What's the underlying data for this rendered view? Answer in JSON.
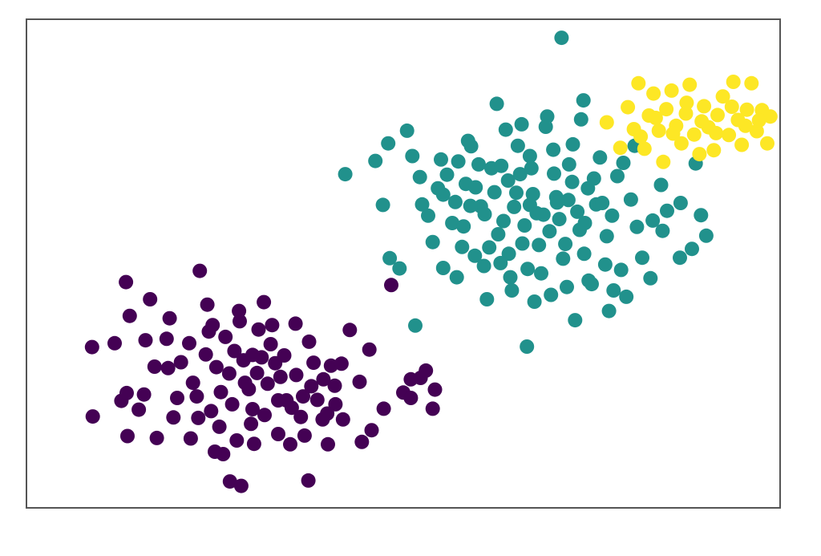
{
  "chart_data": {
    "type": "scatter",
    "title": "",
    "xlabel": "",
    "ylabel": "",
    "xlim": [
      0,
      100
    ],
    "ylim": [
      0,
      100
    ],
    "grid": false,
    "legend": "none",
    "series": [
      {
        "color": "#440154",
        "points": [
          [
            8.8,
            18.7
          ],
          [
            8.7,
            32.9
          ],
          [
            12.6,
            21.9
          ],
          [
            11.7,
            33.7
          ],
          [
            13.2,
            46.2
          ],
          [
            13.3,
            23.5
          ],
          [
            13.4,
            14.7
          ],
          [
            13.7,
            39.3
          ],
          [
            14.9,
            20.1
          ],
          [
            15.8,
            34.3
          ],
          [
            15.6,
            23.2
          ],
          [
            16.4,
            42.7
          ],
          [
            17.3,
            14.3
          ],
          [
            18.8,
            28.6
          ],
          [
            19.5,
            18.5
          ],
          [
            21.6,
            33.7
          ],
          [
            21.8,
            14.2
          ],
          [
            22.6,
            22.8
          ],
          [
            23.0,
            48.5
          ],
          [
            24.0,
            41.6
          ],
          [
            24.2,
            36.1
          ],
          [
            25.2,
            28.8
          ],
          [
            25.6,
            16.6
          ],
          [
            26.1,
            11.0
          ],
          [
            27.0,
            5.4
          ],
          [
            28.5,
            4.5
          ],
          [
            28.3,
            38.2
          ],
          [
            29.0,
            25.6
          ],
          [
            30.0,
            20.2
          ],
          [
            30.2,
            13.1
          ],
          [
            31.5,
            42.1
          ],
          [
            32.4,
            33.5
          ],
          [
            33.4,
            15.1
          ],
          [
            33.0,
            29.6
          ],
          [
            34.5,
            22.0
          ],
          [
            35.0,
            13.0
          ],
          [
            35.7,
            37.7
          ],
          [
            36.7,
            22.8
          ],
          [
            37.4,
            5.6
          ],
          [
            37.5,
            34.0
          ],
          [
            38.1,
            29.7
          ],
          [
            39.3,
            18.1
          ],
          [
            39.4,
            26.3
          ],
          [
            40.0,
            13.0
          ],
          [
            40.4,
            29.1
          ],
          [
            41.0,
            21.2
          ],
          [
            42.0,
            18.1
          ],
          [
            42.9,
            36.4
          ],
          [
            44.2,
            25.8
          ],
          [
            44.5,
            13.5
          ],
          [
            45.5,
            32.4
          ],
          [
            45.8,
            15.9
          ],
          [
            47.4,
            20.3
          ],
          [
            48.4,
            45.6
          ],
          [
            50.0,
            23.6
          ],
          [
            51.0,
            26.3
          ],
          [
            51.0,
            22.5
          ],
          [
            52.3,
            26.6
          ],
          [
            53.0,
            28.1
          ],
          [
            53.9,
            20.3
          ],
          [
            54.2,
            24.2
          ],
          [
            18.6,
            34.6
          ],
          [
            20.5,
            29.8
          ],
          [
            22.1,
            25.6
          ],
          [
            23.8,
            31.4
          ],
          [
            24.5,
            19.8
          ],
          [
            25.8,
            23.7
          ],
          [
            26.9,
            27.5
          ],
          [
            27.6,
            32.1
          ],
          [
            28.8,
            30.2
          ],
          [
            29.5,
            24.3
          ],
          [
            30.6,
            27.6
          ],
          [
            31.2,
            30.8
          ],
          [
            32.0,
            25.4
          ],
          [
            33.7,
            26.8
          ],
          [
            34.2,
            31.2
          ],
          [
            35.8,
            27.2
          ],
          [
            36.4,
            18.6
          ],
          [
            37.8,
            24.9
          ],
          [
            38.6,
            22.1
          ],
          [
            39.9,
            19.3
          ],
          [
            40.9,
            25.0
          ],
          [
            41.8,
            29.5
          ],
          [
            26.4,
            35.0
          ],
          [
            27.3,
            21.2
          ],
          [
            29.8,
            17.2
          ],
          [
            31.6,
            19.0
          ],
          [
            30.8,
            36.5
          ],
          [
            22.8,
            18.4
          ],
          [
            20.0,
            22.5
          ],
          [
            24.7,
            37.4
          ],
          [
            28.2,
            40.3
          ],
          [
            32.6,
            37.4
          ],
          [
            35.2,
            20.5
          ],
          [
            17.0,
            28.9
          ],
          [
            19.0,
            38.8
          ],
          [
            36.9,
            14.8
          ],
          [
            25.0,
            11.5
          ],
          [
            27.9,
            13.8
          ],
          [
            33.4,
            22.0
          ],
          [
            30.0,
            31.3
          ]
        ]
      },
      {
        "color": "#21918c",
        "points": [
          [
            42.3,
            68.3
          ],
          [
            48.2,
            51.1
          ],
          [
            49.5,
            49.0
          ],
          [
            51.6,
            37.3
          ],
          [
            47.3,
            62.0
          ],
          [
            46.3,
            71.0
          ],
          [
            48.0,
            74.6
          ],
          [
            50.5,
            77.2
          ],
          [
            51.2,
            72.0
          ],
          [
            52.5,
            62.1
          ],
          [
            53.9,
            54.4
          ],
          [
            55.0,
            71.3
          ],
          [
            55.3,
            64.1
          ],
          [
            56.5,
            58.3
          ],
          [
            57.1,
            47.2
          ],
          [
            58.3,
            66.3
          ],
          [
            58.6,
            75.1
          ],
          [
            59.5,
            51.6
          ],
          [
            60.3,
            61.7
          ],
          [
            61.1,
            42.7
          ],
          [
            61.7,
            69.5
          ],
          [
            62.4,
            82.7
          ],
          [
            62.6,
            56.0
          ],
          [
            63.6,
            77.4
          ],
          [
            64.2,
            47.2
          ],
          [
            65.0,
            64.5
          ],
          [
            65.8,
            54.1
          ],
          [
            66.4,
            33.0
          ],
          [
            66.8,
            72.0
          ],
          [
            67.7,
            60.3
          ],
          [
            68.3,
            48.0
          ],
          [
            69.1,
            80.1
          ],
          [
            69.6,
            43.6
          ],
          [
            70.3,
            63.6
          ],
          [
            71.0,
            96.2
          ],
          [
            71.5,
            54.0
          ],
          [
            72.0,
            70.3
          ],
          [
            72.8,
            38.4
          ],
          [
            73.4,
            56.9
          ],
          [
            73.9,
            83.4
          ],
          [
            74.5,
            65.4
          ],
          [
            75.0,
            45.8
          ],
          [
            75.6,
            62.1
          ],
          [
            76.1,
            71.7
          ],
          [
            77.3,
            40.3
          ],
          [
            77.0,
            55.6
          ],
          [
            78.4,
            67.9
          ],
          [
            78.9,
            48.7
          ],
          [
            79.6,
            43.2
          ],
          [
            80.2,
            63.1
          ],
          [
            81.0,
            57.5
          ],
          [
            81.7,
            51.2
          ],
          [
            82.8,
            47.0
          ],
          [
            84.2,
            66.1
          ],
          [
            84.4,
            56.7
          ],
          [
            85.0,
            60.8
          ],
          [
            86.8,
            62.4
          ],
          [
            86.7,
            51.2
          ],
          [
            88.3,
            53.0
          ],
          [
            88.8,
            70.5
          ],
          [
            89.5,
            59.9
          ],
          [
            90.2,
            55.7
          ],
          [
            53.3,
            59.8
          ],
          [
            54.6,
            65.4
          ],
          [
            56.9,
            62.6
          ],
          [
            58.0,
            57.6
          ],
          [
            59.6,
            65.6
          ],
          [
            60.8,
            60.1
          ],
          [
            62.1,
            64.6
          ],
          [
            63.3,
            58.7
          ],
          [
            64.7,
            61.6
          ],
          [
            65.5,
            68.3
          ],
          [
            66.1,
            57.8
          ],
          [
            67.2,
            64.2
          ],
          [
            68.6,
            60.0
          ],
          [
            69.4,
            56.6
          ],
          [
            70.7,
            59.1
          ],
          [
            71.9,
            63.0
          ],
          [
            72.4,
            66.7
          ],
          [
            73.1,
            60.6
          ],
          [
            74.1,
            58.3
          ],
          [
            75.3,
            67.4
          ],
          [
            76.4,
            62.4
          ],
          [
            77.7,
            59.8
          ],
          [
            60.0,
            70.3
          ],
          [
            61.4,
            53.3
          ],
          [
            63.0,
            70.0
          ],
          [
            64.0,
            52.0
          ],
          [
            65.2,
            74.1
          ],
          [
            67.0,
            69.5
          ],
          [
            68.0,
            53.8
          ],
          [
            70.0,
            68.4
          ],
          [
            71.2,
            51.0
          ],
          [
            72.5,
            74.4
          ],
          [
            74.0,
            52.0
          ],
          [
            55.8,
            68.2
          ],
          [
            57.8,
            53.4
          ],
          [
            62.9,
            50.1
          ],
          [
            66.5,
            48.9
          ],
          [
            69.9,
            73.3
          ],
          [
            76.8,
            49.8
          ],
          [
            79.2,
            70.6
          ],
          [
            83.1,
            58.8
          ],
          [
            80.7,
            74.1
          ],
          [
            59.0,
            74.0
          ],
          [
            65.7,
            78.5
          ],
          [
            68.9,
            78.0
          ],
          [
            73.6,
            79.5
          ],
          [
            57.3,
            70.9
          ],
          [
            71.7,
            45.2
          ],
          [
            60.7,
            49.5
          ],
          [
            64.4,
            44.5
          ],
          [
            74.6,
            46.5
          ],
          [
            77.9,
            44.5
          ],
          [
            67.4,
            42.2
          ],
          [
            55.3,
            49.1
          ],
          [
            52.2,
            67.7
          ],
          [
            63.9,
            67.0
          ],
          [
            66.8,
            62.0
          ],
          [
            70.4,
            62.5
          ],
          [
            58.9,
            61.8
          ]
        ]
      },
      {
        "color": "#fde725",
        "points": [
          [
            77.0,
            78.9
          ],
          [
            78.8,
            73.7
          ],
          [
            79.8,
            82.0
          ],
          [
            80.6,
            77.5
          ],
          [
            81.2,
            86.9
          ],
          [
            82.0,
            73.5
          ],
          [
            82.6,
            80.3
          ],
          [
            83.2,
            84.8
          ],
          [
            83.9,
            77.2
          ],
          [
            84.5,
            70.8
          ],
          [
            84.9,
            81.6
          ],
          [
            85.6,
            85.4
          ],
          [
            86.2,
            78.2
          ],
          [
            86.9,
            74.6
          ],
          [
            87.5,
            80.7
          ],
          [
            88.0,
            86.6
          ],
          [
            88.6,
            76.4
          ],
          [
            89.3,
            72.4
          ],
          [
            89.9,
            82.2
          ],
          [
            90.5,
            77.9
          ],
          [
            91.2,
            73.2
          ],
          [
            91.7,
            80.4
          ],
          [
            92.4,
            84.2
          ],
          [
            93.2,
            76.3
          ],
          [
            93.8,
            87.2
          ],
          [
            94.4,
            79.4
          ],
          [
            94.9,
            74.3
          ],
          [
            95.6,
            81.5
          ],
          [
            96.2,
            86.9
          ],
          [
            96.9,
            77.1
          ],
          [
            97.6,
            81.4
          ],
          [
            98.3,
            74.6
          ],
          [
            98.7,
            80.1
          ],
          [
            81.5,
            76.0
          ],
          [
            83.5,
            79.8
          ],
          [
            85.8,
            76.6
          ],
          [
            87.6,
            82.9
          ],
          [
            89.6,
            79.1
          ],
          [
            91.5,
            76.7
          ],
          [
            93.6,
            82.1
          ],
          [
            95.4,
            78.2
          ],
          [
            97.2,
            79.3
          ]
        ]
      }
    ]
  }
}
